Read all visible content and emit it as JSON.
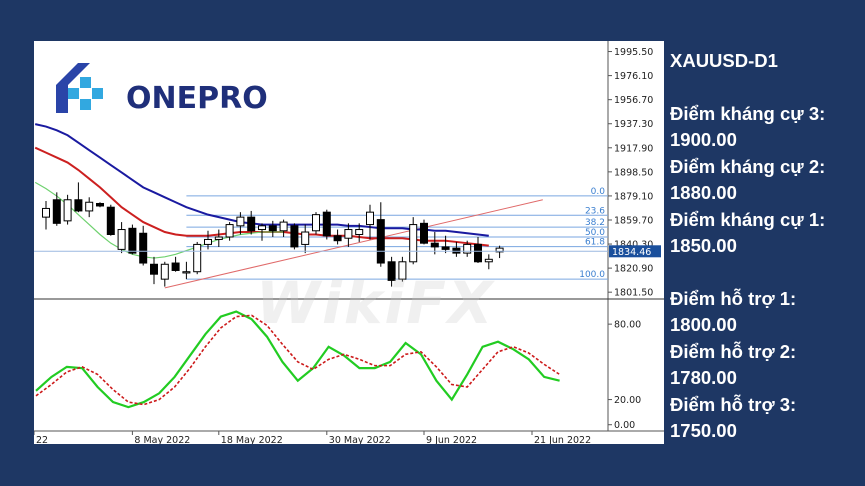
{
  "brand": {
    "logo_text": "ONEPRO",
    "watermark_text": "WikiFX"
  },
  "side_panel": {
    "symbol": "XAUUSD-D1",
    "resistances": [
      {
        "label": "Điểm kháng cự 3:",
        "value": "1900.00"
      },
      {
        "label": "Điểm kháng cự 2:",
        "value": "1880.00"
      },
      {
        "label": "Điểm kháng cự 1:",
        "value": "1850.00"
      }
    ],
    "supports": [
      {
        "label": "Điểm hỗ trợ 1:",
        "value": "1800.00"
      },
      {
        "label": "Điểm hỗ trợ 2:",
        "value": "1780.00"
      },
      {
        "label": "Điểm hỗ trợ 3:",
        "value": "1750.00"
      }
    ]
  },
  "chart_data": {
    "type": "candlestick",
    "symbol": "XAUUSD",
    "timeframe": "D1",
    "price_axis": {
      "ticks": [
        "1995.50",
        "1976.10",
        "1956.70",
        "1937.30",
        "1917.90",
        "1898.50",
        "1879.10",
        "1859.70",
        "1840.30",
        "1820.90",
        "1801.50"
      ],
      "tick_values": [
        1995.5,
        1976.1,
        1956.7,
        1937.3,
        1917.9,
        1898.5,
        1879.1,
        1859.7,
        1840.3,
        1820.9,
        1801.5
      ],
      "ylim": [
        1796,
        2004
      ],
      "current_price_label": "1834.46",
      "current_price": 1834.46
    },
    "time_axis": {
      "labels": [
        "22",
        "8 May 2022",
        "18 May 2022",
        "30 May 2022",
        "9 Jun 2022",
        "21 Jun 2022"
      ],
      "label_candle_index": [
        -1,
        8,
        16,
        26,
        35,
        45
      ]
    },
    "candles": [
      {
        "o": 1862,
        "h": 1875,
        "l": 1852,
        "c": 1869
      },
      {
        "o": 1876,
        "h": 1882,
        "l": 1855,
        "c": 1857
      },
      {
        "o": 1859,
        "h": 1880,
        "l": 1856,
        "c": 1876
      },
      {
        "o": 1876,
        "h": 1890,
        "l": 1866,
        "c": 1867
      },
      {
        "o": 1867,
        "h": 1878,
        "l": 1862,
        "c": 1874
      },
      {
        "o": 1873,
        "h": 1874,
        "l": 1870,
        "c": 1871
      },
      {
        "o": 1870,
        "h": 1872,
        "l": 1847,
        "c": 1848
      },
      {
        "o": 1836,
        "h": 1858,
        "l": 1833,
        "c": 1852
      },
      {
        "o": 1853,
        "h": 1856,
        "l": 1832,
        "c": 1833
      },
      {
        "o": 1849,
        "h": 1855,
        "l": 1823,
        "c": 1825
      },
      {
        "o": 1824,
        "h": 1830,
        "l": 1808,
        "c": 1816
      },
      {
        "o": 1812,
        "h": 1826,
        "l": 1806,
        "c": 1824
      },
      {
        "o": 1825,
        "h": 1830,
        "l": 1818,
        "c": 1819
      },
      {
        "o": 1817,
        "h": 1826,
        "l": 1812,
        "c": 1818
      },
      {
        "o": 1818,
        "h": 1842,
        "l": 1816,
        "c": 1840
      },
      {
        "o": 1840,
        "h": 1851,
        "l": 1836,
        "c": 1844
      },
      {
        "o": 1844,
        "h": 1852,
        "l": 1838,
        "c": 1846
      },
      {
        "o": 1846,
        "h": 1858,
        "l": 1843,
        "c": 1856
      },
      {
        "o": 1855,
        "h": 1866,
        "l": 1848,
        "c": 1862
      },
      {
        "o": 1862,
        "h": 1867,
        "l": 1848,
        "c": 1851
      },
      {
        "o": 1852,
        "h": 1857,
        "l": 1843,
        "c": 1855
      },
      {
        "o": 1855,
        "h": 1859,
        "l": 1846,
        "c": 1851
      },
      {
        "o": 1851,
        "h": 1860,
        "l": 1846,
        "c": 1858
      },
      {
        "o": 1855,
        "h": 1857,
        "l": 1836,
        "c": 1838
      },
      {
        "o": 1840,
        "h": 1856,
        "l": 1833,
        "c": 1850
      },
      {
        "o": 1851,
        "h": 1866,
        "l": 1848,
        "c": 1864
      },
      {
        "o": 1866,
        "h": 1868,
        "l": 1844,
        "c": 1847
      },
      {
        "o": 1847,
        "h": 1852,
        "l": 1840,
        "c": 1843
      },
      {
        "o": 1845,
        "h": 1857,
        "l": 1838,
        "c": 1852
      },
      {
        "o": 1848,
        "h": 1857,
        "l": 1842,
        "c": 1852
      },
      {
        "o": 1856,
        "h": 1872,
        "l": 1844,
        "c": 1866
      },
      {
        "o": 1860,
        "h": 1874,
        "l": 1822,
        "c": 1825
      },
      {
        "o": 1826,
        "h": 1830,
        "l": 1806,
        "c": 1811
      },
      {
        "o": 1812,
        "h": 1830,
        "l": 1810,
        "c": 1826
      },
      {
        "o": 1826,
        "h": 1862,
        "l": 1824,
        "c": 1856
      },
      {
        "o": 1857,
        "h": 1860,
        "l": 1840,
        "c": 1841
      },
      {
        "o": 1841,
        "h": 1850,
        "l": 1832,
        "c": 1838
      },
      {
        "o": 1838,
        "h": 1847,
        "l": 1833,
        "c": 1836
      },
      {
        "o": 1837,
        "h": 1842,
        "l": 1830,
        "c": 1833
      },
      {
        "o": 1833,
        "h": 1843,
        "l": 1830,
        "c": 1840
      },
      {
        "o": 1840,
        "h": 1846,
        "l": 1825,
        "c": 1826
      },
      {
        "o": 1826,
        "h": 1832,
        "l": 1820,
        "c": 1828
      },
      {
        "o": 1834,
        "h": 1839,
        "l": 1829,
        "c": 1837
      }
    ],
    "moving_averages": [
      {
        "color": "#1a1aa0",
        "values": [
          1937,
          1935,
          1932,
          1928,
          1922,
          1916,
          1910,
          1904,
          1898,
          1892,
          1886,
          1882,
          1878,
          1874,
          1870,
          1867,
          1864,
          1862,
          1860,
          1858,
          1857,
          1856,
          1856,
          1856,
          1856,
          1856,
          1856,
          1856,
          1856,
          1855,
          1855,
          1854,
          1853,
          1853,
          1853,
          1852,
          1852,
          1851,
          1851,
          1850,
          1849,
          1848,
          1847
        ]
      },
      {
        "color": "#cc2020",
        "values": [
          1918,
          1914,
          1910,
          1906,
          1900,
          1893,
          1886,
          1878,
          1870,
          1864,
          1858,
          1854,
          1850,
          1848,
          1847,
          1847,
          1847,
          1848,
          1849,
          1850,
          1850,
          1850,
          1850,
          1850,
          1849,
          1848,
          1848,
          1847,
          1847,
          1847,
          1846,
          1845,
          1845,
          1845,
          1845,
          1844,
          1843,
          1843,
          1843,
          1842,
          1841,
          1840,
          1839
        ]
      },
      {
        "color": "#6fd16f",
        "values": [
          1890,
          1885,
          1879,
          1872,
          1864,
          1856,
          1848,
          1841,
          1836,
          1832,
          1830,
          1829,
          1830,
          1832,
          1835,
          1838,
          1841,
          1844,
          1846,
          1848,
          1849,
          1850,
          1850,
          1850
        ]
      }
    ],
    "fibonacci": {
      "levels": [
        "0.0",
        "23.6",
        "38.2",
        "50.0",
        "61.8",
        "100.0"
      ],
      "prices": [
        1879.1,
        1863.5,
        1853.9,
        1846.0,
        1838.2,
        1812.0
      ]
    },
    "trendline": {
      "from": {
        "i": 11,
        "price": 1805
      },
      "to": {
        "i": 46,
        "price": 1876
      }
    },
    "oscillator": {
      "ticks": [
        "80.00",
        "20.00",
        "0.00"
      ],
      "tick_values": [
        80,
        20,
        0
      ],
      "ylim": [
        -5,
        100
      ],
      "fast": [
        27,
        38,
        46,
        45,
        30,
        18,
        14,
        18,
        25,
        38,
        55,
        72,
        86,
        90,
        84,
        70,
        50,
        35,
        45,
        62,
        55,
        45,
        45,
        50,
        65,
        56,
        35,
        20,
        40,
        62,
        66,
        60,
        52,
        38,
        35
      ],
      "slow": [
        23,
        32,
        42,
        46,
        40,
        28,
        18,
        16,
        20,
        30,
        45,
        62,
        77,
        86,
        87,
        79,
        64,
        50,
        44,
        52,
        56,
        52,
        47,
        47,
        56,
        58,
        46,
        32,
        30,
        44,
        58,
        62,
        57,
        48,
        40
      ]
    }
  }
}
